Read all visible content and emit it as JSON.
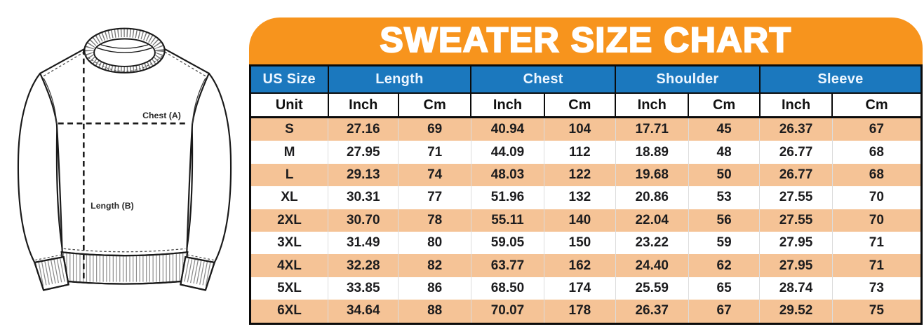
{
  "title": "SWEATER SIZE CHART",
  "diagram": {
    "chest_label": "Chest (A)",
    "length_label": "Length (B)"
  },
  "table": {
    "group_headers": [
      {
        "label": "US Size",
        "span": 1
      },
      {
        "label": "Length",
        "span": 2
      },
      {
        "label": "Chest",
        "span": 2
      },
      {
        "label": "Shoulder",
        "span": 2
      },
      {
        "label": "Sleeve",
        "span": 2
      }
    ],
    "unit_row": [
      "Unit",
      "Inch",
      "Cm",
      "Inch",
      "Cm",
      "Inch",
      "Cm",
      "Inch",
      "Cm"
    ],
    "rows": [
      {
        "size": "S",
        "values": [
          "27.16",
          "69",
          "40.94",
          "104",
          "17.71",
          "45",
          "26.37",
          "67"
        ]
      },
      {
        "size": "M",
        "values": [
          "27.95",
          "71",
          "44.09",
          "112",
          "18.89",
          "48",
          "26.77",
          "68"
        ]
      },
      {
        "size": "L",
        "values": [
          "29.13",
          "74",
          "48.03",
          "122",
          "19.68",
          "50",
          "26.77",
          "68"
        ]
      },
      {
        "size": "XL",
        "values": [
          "30.31",
          "77",
          "51.96",
          "132",
          "20.86",
          "53",
          "27.55",
          "70"
        ]
      },
      {
        "size": "2XL",
        "values": [
          "30.70",
          "78",
          "55.11",
          "140",
          "22.04",
          "56",
          "27.55",
          "70"
        ]
      },
      {
        "size": "3XL",
        "values": [
          "31.49",
          "80",
          "59.05",
          "150",
          "23.22",
          "59",
          "27.95",
          "71"
        ]
      },
      {
        "size": "4XL",
        "values": [
          "32.28",
          "82",
          "63.77",
          "162",
          "24.40",
          "62",
          "27.95",
          "71"
        ]
      },
      {
        "size": "5XL",
        "values": [
          "33.85",
          "86",
          "68.50",
          "174",
          "25.59",
          "65",
          "28.74",
          "73"
        ]
      },
      {
        "size": "6XL",
        "values": [
          "34.64",
          "88",
          "70.07",
          "178",
          "26.37",
          "67",
          "29.52",
          "75"
        ]
      }
    ]
  },
  "colors": {
    "banner_orange": "#F7941D",
    "header_blue": "#1B78BE",
    "row_peach": "#F5C396",
    "border_black": "#0B0B0B",
    "header_text": "#EDF6FF",
    "text_dark": "#1C1C1E"
  },
  "chart_data": {
    "type": "table",
    "title": "SWEATER SIZE CHART",
    "column_groups": [
      "US Size",
      "Length",
      "Chest",
      "Shoulder",
      "Sleeve"
    ],
    "columns": [
      "US Size",
      "Length Inch",
      "Length Cm",
      "Chest Inch",
      "Chest Cm",
      "Shoulder Inch",
      "Shoulder Cm",
      "Sleeve Inch",
      "Sleeve Cm"
    ],
    "rows": [
      [
        "S",
        27.16,
        69,
        40.94,
        104,
        17.71,
        45,
        26.37,
        67
      ],
      [
        "M",
        27.95,
        71,
        44.09,
        112,
        18.89,
        48,
        26.77,
        68
      ],
      [
        "L",
        29.13,
        74,
        48.03,
        122,
        19.68,
        50,
        26.77,
        68
      ],
      [
        "XL",
        30.31,
        77,
        51.96,
        132,
        20.86,
        53,
        27.55,
        70
      ],
      [
        "2XL",
        30.7,
        78,
        55.11,
        140,
        22.04,
        56,
        27.55,
        70
      ],
      [
        "3XL",
        31.49,
        80,
        59.05,
        150,
        23.22,
        59,
        27.95,
        71
      ],
      [
        "4XL",
        32.28,
        82,
        63.77,
        162,
        24.4,
        62,
        27.95,
        71
      ],
      [
        "5XL",
        33.85,
        86,
        68.5,
        174,
        25.59,
        65,
        28.74,
        73
      ],
      [
        "6XL",
        34.64,
        88,
        70.07,
        178,
        26.37,
        67,
        29.52,
        75
      ]
    ],
    "legend_position": "none",
    "grid": true
  }
}
